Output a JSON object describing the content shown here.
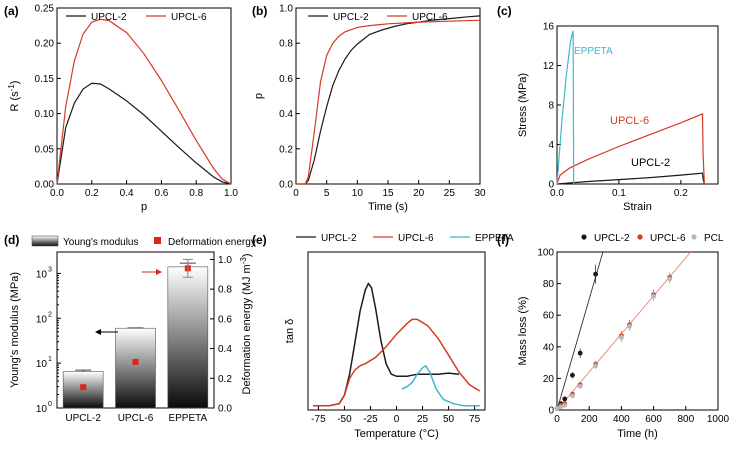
{
  "colors": {
    "upcl2": "#1a1a1a",
    "upcl6": "#d63a24",
    "eppeta": "#3cb9cf",
    "pcl": "#b8b8b8",
    "deformation_marker": "#e2231a"
  },
  "panels": {
    "a": {
      "tag": "(a)"
    },
    "b": {
      "tag": "(b)"
    },
    "c": {
      "tag": "(c)"
    },
    "d": {
      "tag": "(d)"
    },
    "e": {
      "tag": "(e)"
    },
    "f": {
      "tag": "(f)"
    }
  },
  "chart_data": [
    {
      "id": "a",
      "type": "line",
      "xlabel": "p",
      "ylabel": "R (s-1)",
      "xlim": [
        0,
        1.0
      ],
      "ylim": [
        0,
        0.25
      ],
      "xticks": [
        "0.0",
        "0.2",
        "0.4",
        "0.6",
        "0.8",
        "1.0"
      ],
      "yticks": [
        "0.00",
        "0.05",
        "0.10",
        "0.15",
        "0.20",
        "0.25"
      ],
      "legend": "top",
      "series": [
        {
          "name": "UPCL-2",
          "x": [
            0,
            0.05,
            0.1,
            0.15,
            0.2,
            0.25,
            0.3,
            0.4,
            0.5,
            0.6,
            0.7,
            0.8,
            0.9,
            0.95,
            1.0
          ],
          "y": [
            0,
            0.08,
            0.115,
            0.135,
            0.143,
            0.142,
            0.135,
            0.118,
            0.098,
            0.075,
            0.052,
            0.03,
            0.01,
            0.003,
            0
          ]
        },
        {
          "name": "UPCL-6",
          "x": [
            0,
            0.05,
            0.1,
            0.15,
            0.2,
            0.25,
            0.3,
            0.4,
            0.5,
            0.6,
            0.7,
            0.8,
            0.9,
            0.95,
            1.0
          ],
          "y": [
            0,
            0.11,
            0.175,
            0.213,
            0.23,
            0.234,
            0.232,
            0.215,
            0.185,
            0.147,
            0.105,
            0.062,
            0.022,
            0.007,
            0
          ]
        }
      ]
    },
    {
      "id": "b",
      "type": "line",
      "xlabel": "Time (s)",
      "ylabel": "p",
      "xlim": [
        0,
        30
      ],
      "ylim": [
        0,
        1.0
      ],
      "xticks": [
        "0",
        "5",
        "10",
        "15",
        "20",
        "25",
        "30"
      ],
      "yticks": [
        "0.0",
        "0.2",
        "0.4",
        "0.6",
        "0.8",
        "1.0"
      ],
      "legend": "top",
      "series": [
        {
          "name": "UPCL-2",
          "x": [
            0,
            1.5,
            2,
            3,
            4,
            5,
            6,
            7,
            8,
            9,
            10,
            12,
            14,
            16,
            18,
            20,
            22,
            25,
            28,
            30
          ],
          "y": [
            0,
            0.0,
            0.02,
            0.14,
            0.3,
            0.44,
            0.56,
            0.645,
            0.71,
            0.76,
            0.795,
            0.85,
            0.875,
            0.895,
            0.91,
            0.92,
            0.93,
            0.94,
            0.95,
            0.955
          ]
        },
        {
          "name": "UPCL-6",
          "x": [
            0,
            1.5,
            2,
            3,
            4,
            5,
            6,
            7,
            8,
            10,
            12,
            15,
            20,
            25,
            30
          ],
          "y": [
            0,
            0.0,
            0.04,
            0.3,
            0.58,
            0.73,
            0.8,
            0.84,
            0.865,
            0.89,
            0.9,
            0.91,
            0.92,
            0.925,
            0.93
          ]
        }
      ]
    },
    {
      "id": "c",
      "type": "line",
      "xlabel": "Strain",
      "ylabel": "Stress (MPa)",
      "xlim": [
        0,
        0.26
      ],
      "ylim": [
        0,
        16
      ],
      "xticks": [
        "0.0",
        "0.1",
        "0.2"
      ],
      "yticks": [
        "0",
        "4",
        "8",
        "12",
        "16"
      ],
      "annotations": [
        "EPPETA",
        "UPCL-6",
        "UPCL-2"
      ],
      "series": [
        {
          "name": "UPCL-2",
          "x": [
            0,
            0.05,
            0.1,
            0.15,
            0.2,
            0.235,
            0.236,
            0.238
          ],
          "y": [
            0,
            0.25,
            0.45,
            0.65,
            0.9,
            1.1,
            0.5,
            0
          ]
        },
        {
          "name": "UPCL-6",
          "x": [
            0,
            0.005,
            0.02,
            0.05,
            0.1,
            0.15,
            0.2,
            0.235,
            0.236,
            0.238
          ],
          "y": [
            0,
            0.9,
            1.6,
            2.5,
            3.8,
            5.0,
            6.2,
            7.1,
            3.0,
            0
          ]
        },
        {
          "name": "EPPETA",
          "x": [
            0,
            0.003,
            0.008,
            0.015,
            0.022,
            0.026,
            0.027
          ],
          "y": [
            0,
            2.5,
            6.5,
            11.0,
            14.5,
            15.5,
            0
          ]
        }
      ]
    },
    {
      "id": "d",
      "type": "bar",
      "categories": [
        "UPCL-2",
        "UPCL-6",
        "EPPETA"
      ],
      "ylabel_left": "Young's modulus (MPa)",
      "ylabel_right": "Deformation energy (MJ m-3)",
      "yscale_left": "log",
      "ylim_left": [
        1,
        3000
      ],
      "yticks_left": [
        "10",
        "10",
        "10",
        "10"
      ],
      "yticks_left_exp": [
        "0",
        "1",
        "2",
        "3"
      ],
      "ylim_right": [
        0,
        1.05
      ],
      "yticks_right": [
        "0.0",
        "0.2",
        "0.4",
        "0.6",
        "0.8",
        "1.0"
      ],
      "legend": [
        "Young's modulus",
        "Deformation energy"
      ],
      "series": [
        {
          "name": "Young's modulus",
          "values": [
            6.5,
            60,
            1400
          ],
          "errors": [
            0.5,
            1,
            300
          ]
        },
        {
          "name": "Deformation energy",
          "values": [
            0.14,
            0.31,
            0.94
          ],
          "errors": [
            0.02,
            0.02,
            0.06
          ]
        }
      ]
    },
    {
      "id": "e",
      "type": "line",
      "xlabel": "Temperature (°C)",
      "ylabel": "tan δ",
      "xlim": [
        -85,
        85
      ],
      "ylim": [
        0,
        0.75
      ],
      "xticks": [
        "-75",
        "-50",
        "-25",
        "0",
        "25",
        "50",
        "75"
      ],
      "legend": "top",
      "series": [
        {
          "name": "UPCL-2",
          "x": [
            -80,
            -65,
            -55,
            -50,
            -45,
            -40,
            -35,
            -30,
            -27,
            -24,
            -20,
            -15,
            -10,
            -5,
            0,
            10,
            20,
            30,
            40,
            50,
            60
          ],
          "y": [
            0.02,
            0.02,
            0.03,
            0.07,
            0.17,
            0.32,
            0.47,
            0.57,
            0.6,
            0.58,
            0.48,
            0.33,
            0.22,
            0.17,
            0.16,
            0.16,
            0.17,
            0.17,
            0.17,
            0.175,
            0.17
          ]
        },
        {
          "name": "UPCL-6",
          "x": [
            -80,
            -65,
            -55,
            -50,
            -45,
            -40,
            -35,
            -30,
            -20,
            -10,
            0,
            10,
            15,
            20,
            30,
            40,
            50,
            60,
            70,
            80
          ],
          "y": [
            0.02,
            0.02,
            0.03,
            0.07,
            0.15,
            0.19,
            0.21,
            0.22,
            0.25,
            0.3,
            0.36,
            0.41,
            0.43,
            0.43,
            0.4,
            0.34,
            0.26,
            0.18,
            0.12,
            0.09
          ]
        },
        {
          "name": "EPPETA",
          "x": [
            5,
            10,
            15,
            20,
            25,
            28,
            32,
            38,
            45,
            55,
            65,
            75,
            80
          ],
          "y": [
            0.1,
            0.11,
            0.13,
            0.17,
            0.2,
            0.21,
            0.18,
            0.1,
            0.05,
            0.03,
            0.02,
            0.02,
            0.02
          ]
        }
      ]
    },
    {
      "id": "f",
      "type": "scatter",
      "xlabel": "Time (h)",
      "ylabel": "Mass loss (%)",
      "xlim": [
        0,
        1000
      ],
      "ylim": [
        0,
        100
      ],
      "xticks": [
        "0",
        "200",
        "400",
        "600",
        "800",
        "1000"
      ],
      "yticks": [
        "0",
        "20",
        "40",
        "60",
        "80",
        "100"
      ],
      "legend": "top",
      "series": [
        {
          "name": "UPCL-2",
          "x": [
            0,
            24,
            48,
            96,
            144,
            240
          ],
          "y": [
            1,
            4,
            7,
            22,
            36,
            86
          ],
          "errors": [
            0.5,
            1,
            1,
            2,
            3,
            6
          ],
          "fit": [
            [
              0,
              0
            ],
            [
              285,
              100
            ]
          ]
        },
        {
          "name": "UPCL-6",
          "x": [
            0,
            24,
            48,
            96,
            144,
            240,
            400,
            450,
            600,
            700
          ],
          "y": [
            1,
            3,
            4,
            10,
            16,
            29,
            47,
            54,
            73,
            84
          ],
          "errors": [
            0.5,
            1,
            1,
            1,
            1,
            2,
            3,
            3,
            3,
            3
          ],
          "fit": [
            [
              0,
              0
            ],
            [
              830,
              100
            ]
          ]
        },
        {
          "name": "PCL",
          "x": [
            0,
            24,
            48,
            96,
            144,
            240,
            400,
            450,
            600,
            700
          ],
          "y": [
            1,
            2,
            3,
            9,
            15,
            28,
            46,
            53,
            72,
            83
          ],
          "errors": [
            0.5,
            1,
            1,
            1,
            1,
            2,
            3,
            3,
            3,
            3
          ]
        }
      ]
    }
  ]
}
